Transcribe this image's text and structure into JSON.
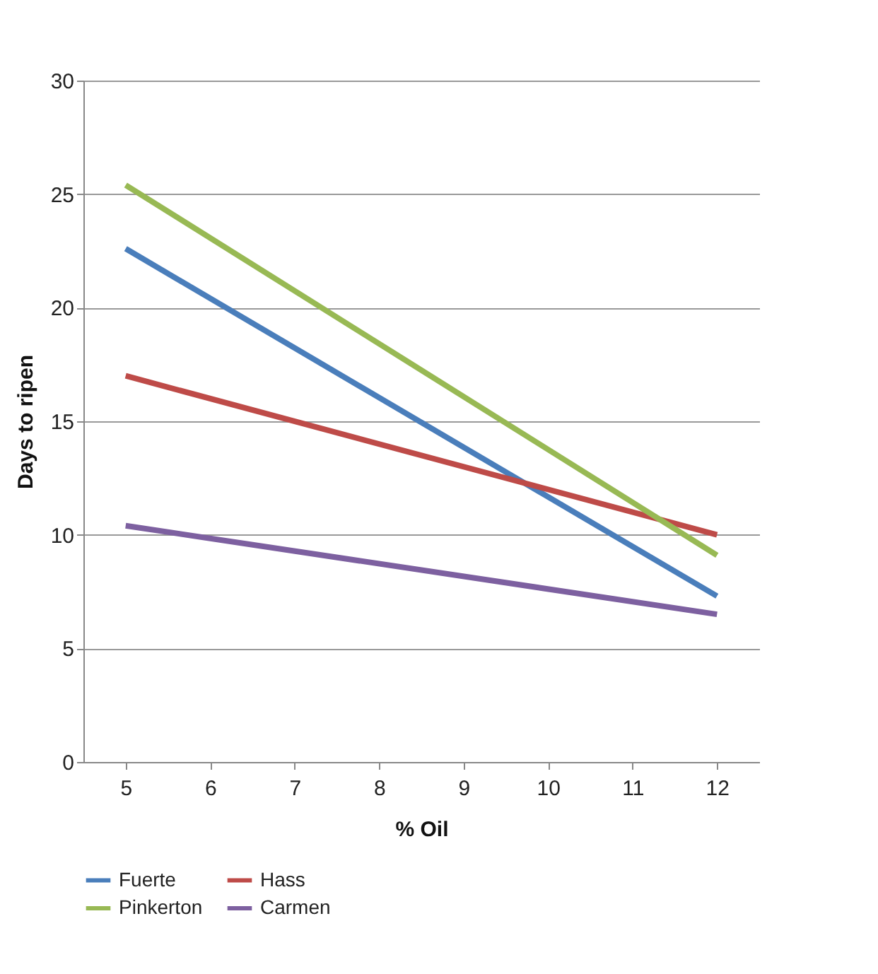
{
  "chart_data": {
    "type": "line",
    "xlabel": "% Oil",
    "ylabel": "Days to ripen",
    "x": [
      5,
      12
    ],
    "series": [
      {
        "name": "Fuerte",
        "color": "#4a7ebb",
        "values": [
          22.6,
          7.3
        ]
      },
      {
        "name": "Hass",
        "color": "#be4b48",
        "values": [
          17.0,
          10.0
        ]
      },
      {
        "name": "Pinkerton",
        "color": "#98b954",
        "values": [
          25.4,
          9.1
        ]
      },
      {
        "name": "Carmen",
        "color": "#7d60a0",
        "values": [
          10.4,
          6.5
        ]
      }
    ],
    "xlim": [
      4.5,
      12.5
    ],
    "xticks": [
      5,
      6,
      7,
      8,
      9,
      10,
      11,
      12
    ],
    "ylim": [
      0,
      30
    ],
    "yticks": [
      0,
      5,
      10,
      15,
      20,
      25,
      30
    ],
    "grid": "y",
    "legend": "bottom",
    "marker": "none",
    "line_style": "solid"
  }
}
